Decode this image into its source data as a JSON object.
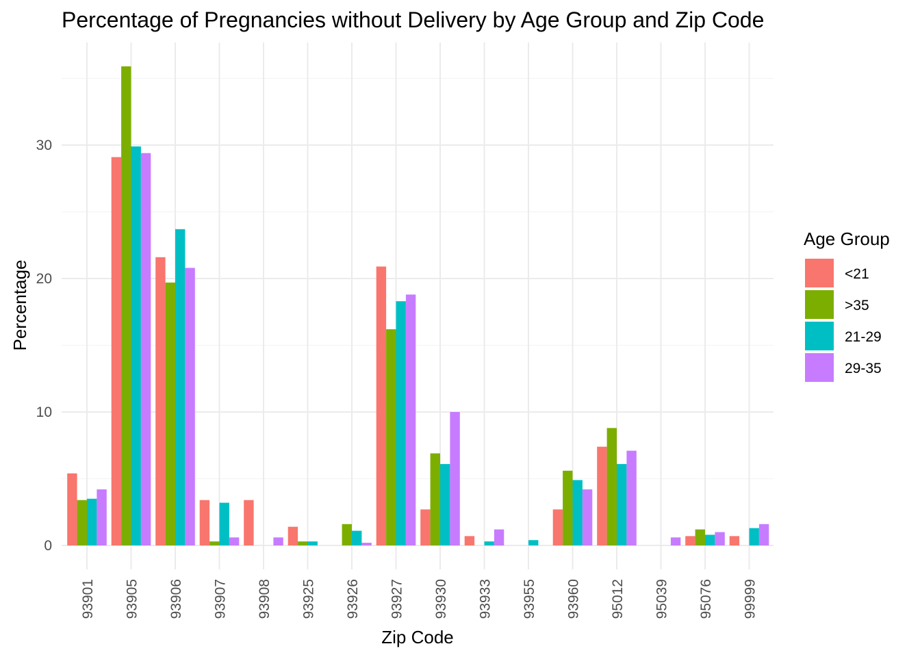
{
  "chart_data": {
    "type": "bar",
    "title": "Percentage of Pregnancies without Delivery by Age Group and Zip Code",
    "xlabel": "Zip Code",
    "ylabel": "Percentage",
    "ylim": [
      0,
      36
    ],
    "yticks": [
      0,
      10,
      20,
      30
    ],
    "grid": true,
    "legend_position": "right",
    "legend_title": "Age Group",
    "categories": [
      "93901",
      "93905",
      "93906",
      "93907",
      "93908",
      "93925",
      "93926",
      "93927",
      "93930",
      "93933",
      "93955",
      "93960",
      "95012",
      "95039",
      "95076",
      "99999"
    ],
    "series": [
      {
        "name": "<21",
        "color": "#F8766D",
        "values": [
          5.4,
          29.1,
          21.6,
          3.4,
          3.4,
          1.4,
          null,
          20.9,
          2.7,
          0.7,
          null,
          2.7,
          7.4,
          null,
          0.7,
          0.7
        ]
      },
      {
        "name": ">35",
        "color": "#7CAE00",
        "values": [
          3.4,
          35.9,
          19.7,
          0.3,
          null,
          0.3,
          1.6,
          16.2,
          6.9,
          null,
          null,
          5.6,
          8.8,
          null,
          1.2,
          null
        ]
      },
      {
        "name": "21-29",
        "color": "#00BFC4",
        "values": [
          3.5,
          29.9,
          23.7,
          3.2,
          null,
          0.3,
          1.1,
          18.3,
          6.1,
          0.3,
          0.4,
          4.9,
          6.1,
          null,
          0.8,
          1.3
        ]
      },
      {
        "name": "29-35",
        "color": "#C77CFF",
        "values": [
          4.2,
          29.4,
          20.8,
          0.6,
          0.6,
          null,
          0.2,
          18.8,
          10.0,
          1.2,
          null,
          4.2,
          7.1,
          0.6,
          1.0,
          1.6
        ]
      }
    ]
  }
}
